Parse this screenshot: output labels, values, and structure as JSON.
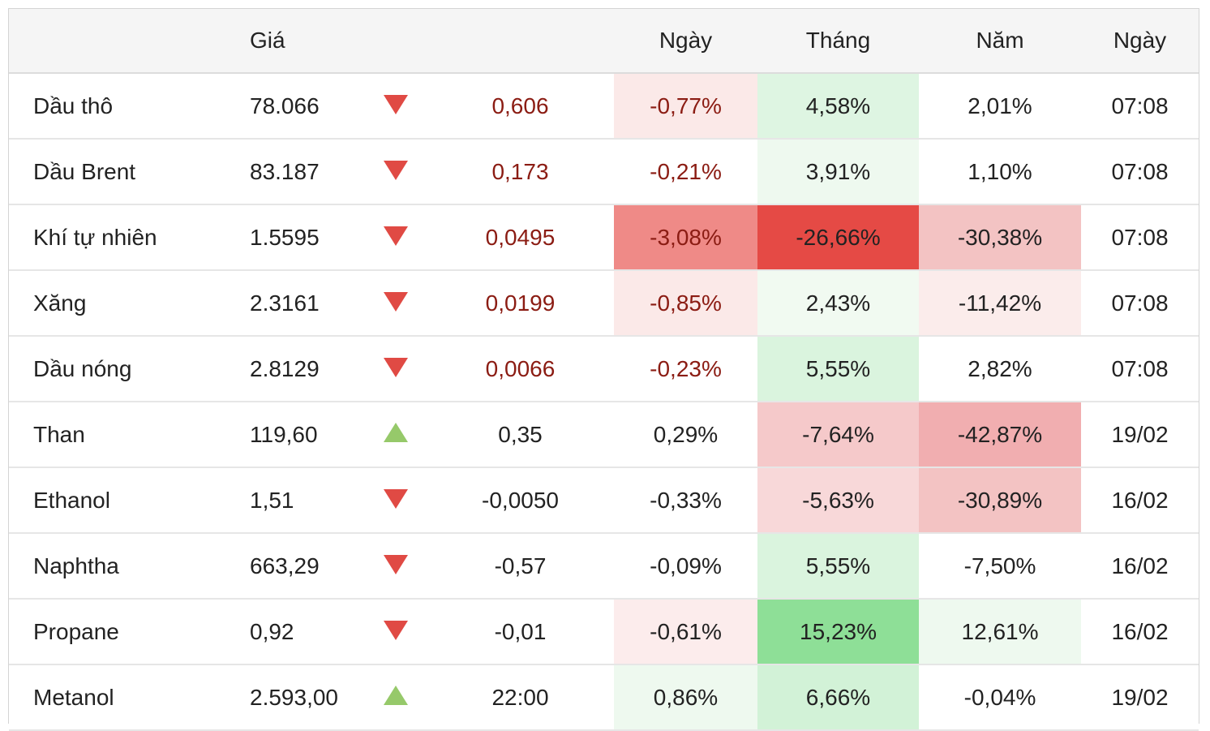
{
  "header": {
    "name": "",
    "price": "Giá",
    "change": "",
    "day": "Ngày",
    "month": "Tháng",
    "year": "Năm",
    "date": "Ngày"
  },
  "colors": {
    "down_arrow": "#e04a44",
    "up_arrow": "#96c96a",
    "neg_text": "#8b1c13"
  },
  "rows": [
    {
      "name": "Dầu thô",
      "price": "78.066",
      "direction": "down",
      "direction_icon": "down-triangle-icon",
      "change": "0,606",
      "change_neg": true,
      "day": "-0,77%",
      "day_bg": "#fbe9e8",
      "month": "4,58%",
      "month_bg": "#def5e2",
      "year": "2,01%",
      "year_bg": "#ffffff",
      "date": "07:08"
    },
    {
      "name": "Dầu Brent",
      "price": "83.187",
      "direction": "down",
      "direction_icon": "down-triangle-icon",
      "change": "0,173",
      "change_neg": true,
      "day": "-0,21%",
      "day_bg": "#ffffff",
      "month": "3,91%",
      "month_bg": "#eef9ef",
      "year": "1,10%",
      "year_bg": "#ffffff",
      "date": "07:08"
    },
    {
      "name": "Khí tự nhiên",
      "price": "1.5595",
      "direction": "down",
      "direction_icon": "down-triangle-icon",
      "change": "0,0495",
      "change_neg": true,
      "day": "-3,08%",
      "day_bg": "#ef8a87",
      "month": "-26,66%",
      "month_bg": "#e54a45",
      "year": "-30,38%",
      "year_bg": "#f3c3c3",
      "date": "07:08"
    },
    {
      "name": "Xăng",
      "price": "2.3161",
      "direction": "down",
      "direction_icon": "down-triangle-icon",
      "change": "0,0199",
      "change_neg": true,
      "day": "-0,85%",
      "day_bg": "#fbe9e8",
      "month": "2,43%",
      "month_bg": "#f1faf1",
      "year": "-11,42%",
      "year_bg": "#fbeceb",
      "date": "07:08"
    },
    {
      "name": "Dầu nóng",
      "price": "2.8129",
      "direction": "down",
      "direction_icon": "down-triangle-icon",
      "change": "0,0066",
      "change_neg": true,
      "day": "-0,23%",
      "day_bg": "#ffffff",
      "month": "5,55%",
      "month_bg": "#daf4de",
      "year": "2,82%",
      "year_bg": "#ffffff",
      "date": "07:08"
    },
    {
      "name": "Than",
      "price": "119,60",
      "direction": "up",
      "direction_icon": "up-triangle-icon",
      "change": "0,35",
      "change_neg": false,
      "day": "0,29%",
      "day_bg": "#ffffff",
      "month": "-7,64%",
      "month_bg": "#f5c9ca",
      "year": "-42,87%",
      "year_bg": "#f1aeb0",
      "date": "19/02"
    },
    {
      "name": "Ethanol",
      "price": "1,51",
      "direction": "down",
      "direction_icon": "down-triangle-icon",
      "change": "-0,0050",
      "change_neg": false,
      "day": "-0,33%",
      "day_bg": "#ffffff",
      "month": "-5,63%",
      "month_bg": "#f8d8d9",
      "year": "-30,89%",
      "year_bg": "#f3c3c3",
      "date": "16/02"
    },
    {
      "name": "Naphtha",
      "price": "663,29",
      "direction": "down",
      "direction_icon": "down-triangle-icon",
      "change": "-0,57",
      "change_neg": false,
      "day": "-0,09%",
      "day_bg": "#ffffff",
      "month": "5,55%",
      "month_bg": "#daf4de",
      "year": "-7,50%",
      "year_bg": "#ffffff",
      "date": "16/02"
    },
    {
      "name": "Propane",
      "price": "0,92",
      "direction": "down",
      "direction_icon": "down-triangle-icon",
      "change": "-0,01",
      "change_neg": false,
      "day": "-0,61%",
      "day_bg": "#fcecec",
      "month": "15,23%",
      "month_bg": "#8edf97",
      "year": "12,61%",
      "year_bg": "#eef9ef",
      "date": "16/02"
    },
    {
      "name": "Metanol",
      "price": "2.593,00",
      "direction": "up",
      "direction_icon": "up-triangle-icon",
      "change": "22:00",
      "change_neg": false,
      "day": "0,86%",
      "day_bg": "#eef9ef",
      "month": "6,66%",
      "month_bg": "#d2f2d7",
      "year": "-0,04%",
      "year_bg": "#ffffff",
      "date": "19/02"
    }
  ]
}
